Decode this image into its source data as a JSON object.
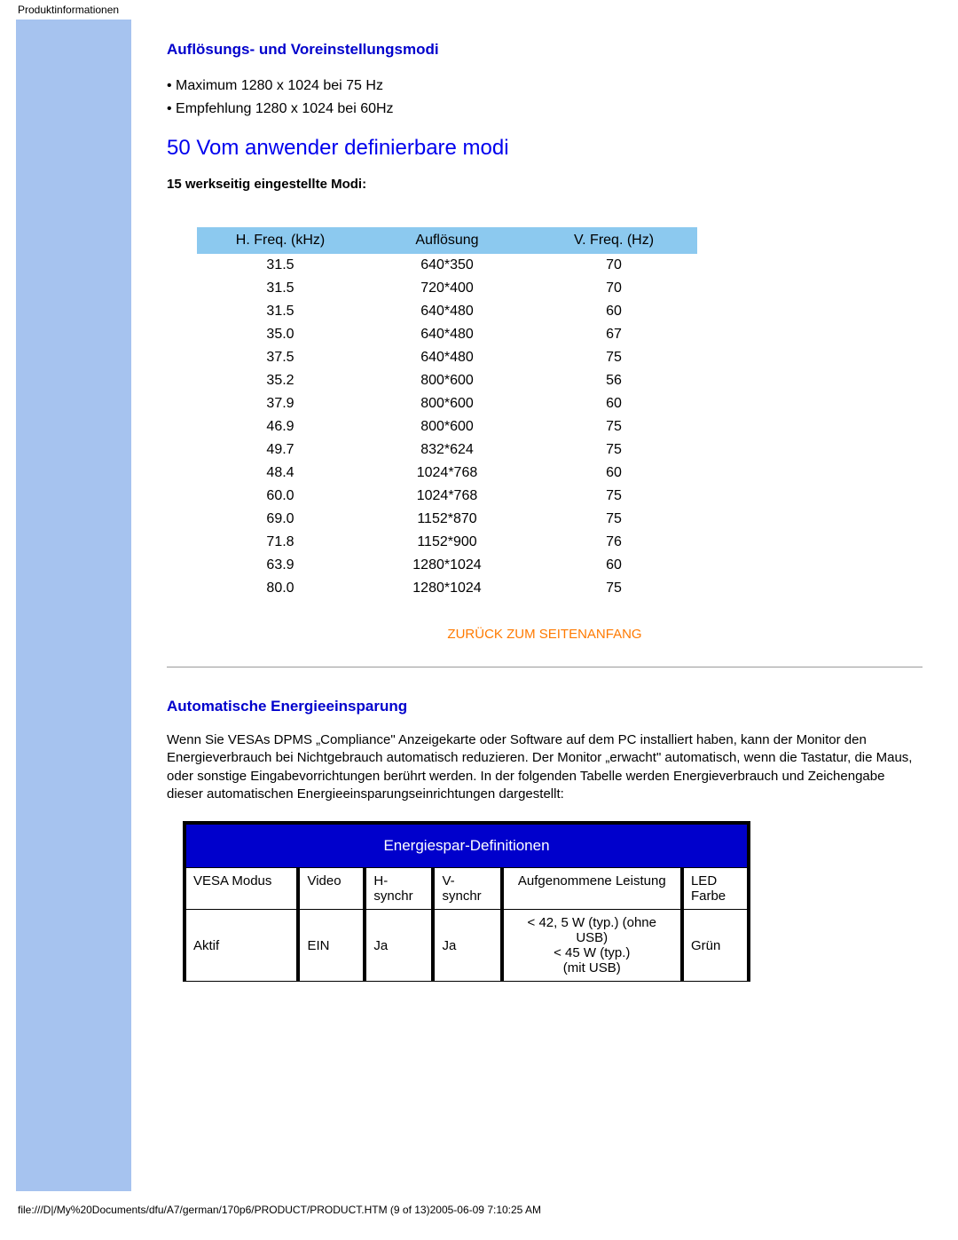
{
  "header_label": "Produktinformationen",
  "resolution_section": {
    "title": "Auflösungs- und Voreinstellungsmodi",
    "bullets": [
      "Maximum 1280 x 1024 bei 75 Hz",
      "Empfehlung 1280 x 1024 bei 60Hz"
    ]
  },
  "user_modes": {
    "title": "50 Vom anwender definierbare modi",
    "subtitle": "15 werkseitig eingestellte Modi:",
    "columns": [
      "H. Freq. (kHz)",
      "Auflösung",
      "V. Freq. (Hz)"
    ],
    "rows": [
      [
        "31.5",
        "640*350",
        "70"
      ],
      [
        "31.5",
        "720*400",
        "70"
      ],
      [
        "31.5",
        "640*480",
        "60"
      ],
      [
        "35.0",
        "640*480",
        "67"
      ],
      [
        "37.5",
        "640*480",
        "75"
      ],
      [
        "35.2",
        "800*600",
        "56"
      ],
      [
        "37.9",
        "800*600",
        "60"
      ],
      [
        "46.9",
        "800*600",
        "75"
      ],
      [
        "49.7",
        "832*624",
        "75"
      ],
      [
        "48.4",
        "1024*768",
        "60"
      ],
      [
        "60.0",
        "1024*768",
        "75"
      ],
      [
        "69.0",
        "1152*870",
        "75"
      ],
      [
        "71.8",
        "1152*900",
        "76"
      ],
      [
        "63.9",
        "1280*1024",
        "60"
      ],
      [
        "80.0",
        "1280*1024",
        "75"
      ]
    ],
    "header_bg": "#8cc9ef"
  },
  "back_link": "ZURÜCK ZUM SEITENANFANG",
  "energy_section": {
    "title": "Automatische Energieeinsparung",
    "paragraph": "Wenn Sie VESAs DPMS „Compliance\" Anzeigekarte oder Software auf dem PC installiert haben, kann der Monitor den Energieverbrauch bei Nichtgebrauch automatisch reduzieren. Der Monitor „erwacht\" automatisch, wenn die Tastatur, die Maus, oder sonstige Eingabevorrichtungen berührt werden. In der folgenden Tabelle werden Energieverbrauch und Zeichengabe dieser automatischen Energieeinsparungseinrichtungen dargestellt:",
    "table_title": "Energiespar-Definitionen",
    "columns": [
      "VESA Modus",
      "Video",
      "H-synchr",
      "V-synchr",
      "Aufgenommene Leistung",
      "LED Farbe"
    ],
    "rows": [
      [
        "Aktif",
        "EIN",
        "Ja",
        "Ja",
        "< 42, 5 W (typ.) (ohne USB)\n< 45 W (typ.)\n(mit USB)",
        "Grün"
      ]
    ],
    "title_bg": "#0000cc",
    "title_color": "#ffffff"
  },
  "footer": "file:///D|/My%20Documents/dfu/A7/german/170p6/PRODUCT/PRODUCT.HTM (9 of 13)2005-06-09 7:10:25 AM"
}
